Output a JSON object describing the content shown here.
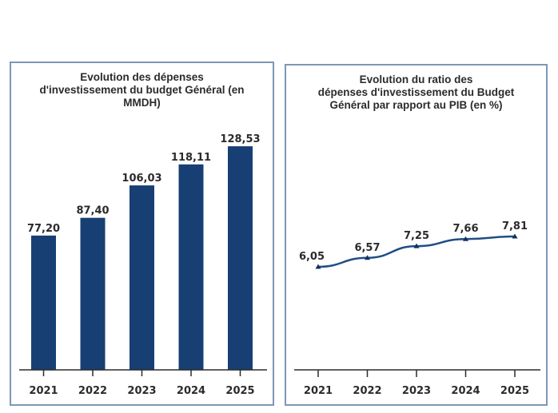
{
  "chart_data": [
    {
      "type": "bar",
      "title_lines": [
        "Evolution des dépenses",
        "d'investissement du budget Général (en",
        "MMDH)"
      ],
      "title": "Evolution des dépenses d'investissement du budget Général (en MMDH)",
      "categories": [
        "2021",
        "2022",
        "2023",
        "2024",
        "2025"
      ],
      "values": [
        77.2,
        87.4,
        106.03,
        118.11,
        128.53
      ],
      "value_labels": [
        "77,20",
        "87,40",
        "106,03",
        "118,11",
        "128,53"
      ],
      "xlabel": "",
      "ylabel": "",
      "ylim": [
        0,
        135
      ],
      "grid": false,
      "legend": "none",
      "bar_color": "#173f73"
    },
    {
      "type": "line",
      "title_lines": [
        "Evolution du ratio des",
        "dépenses d'investissement du Budget",
        "Général par rapport au PIB (en %)"
      ],
      "title": "Evolution du ratio des dépenses d'investissement du Budget Général par rapport au PIB (en %)",
      "categories": [
        "2021",
        "2022",
        "2023",
        "2024",
        "2025"
      ],
      "values": [
        6.05,
        6.57,
        7.25,
        7.66,
        7.81
      ],
      "value_labels": [
        "6,05",
        "6,57",
        "7,25",
        "7,66",
        "7,81"
      ],
      "xlabel": "",
      "ylabel": "",
      "ylim": [
        0,
        10
      ],
      "grid": false,
      "legend": "none",
      "line_color": "#1f4e85"
    }
  ]
}
